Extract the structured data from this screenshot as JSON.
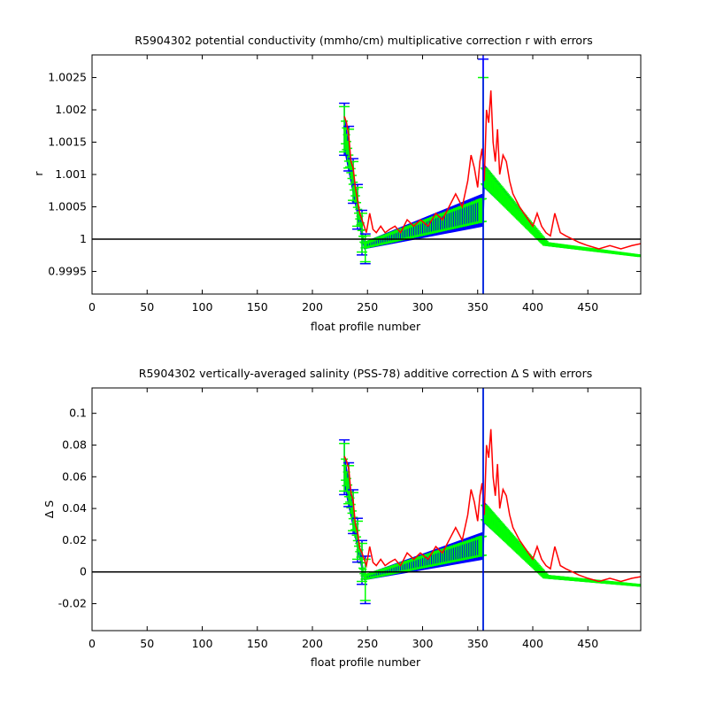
{
  "chart_data": [
    {
      "type": "line",
      "title": "R5904302 potential conductivity (mmho/cm) multiplicative correction r with errors",
      "xlabel": "float profile number",
      "ylabel": "r",
      "xlim": [
        0,
        498
      ],
      "ylim": [
        0.99915,
        1.00285
      ],
      "xticks": [
        0,
        50,
        100,
        150,
        200,
        250,
        300,
        350,
        400,
        450
      ],
      "yticks": [
        0.9995,
        1,
        1.0005,
        1.001,
        1.0015,
        1.002,
        1.0025
      ],
      "ytick_labels": [
        "0.9995",
        "1",
        "1.0005",
        "1.001",
        "1.0015",
        "1.002",
        "1.0025"
      ],
      "reference_line": 1,
      "vertical_line": 355,
      "colors": {
        "fit": "#0000ff",
        "error": "#00ff00",
        "raw": "#ff0000",
        "axes": "#000000"
      },
      "series": [
        {
          "name": "",
          "role": "fit-upper",
          "x": [
            229,
            247,
            355,
            356,
            412,
            498
          ],
          "y": [
            1.0019,
            0.99995,
            1.0007,
            1.00115,
            0.99995,
            0.99975
          ]
        },
        {
          "name": "",
          "role": "fit-lower",
          "x": [
            229,
            247,
            355,
            356,
            412,
            498
          ],
          "y": [
            1.0014,
            0.99985,
            1.0002,
            1.0008,
            0.9999,
            0.99973
          ]
        },
        {
          "name": "",
          "role": "error-bars",
          "x": [
            229,
            233,
            237,
            241,
            245,
            248,
            355
          ],
          "y": [
            1.0017,
            1.0014,
            1.0009,
            1.0005,
            1.0001,
            0.99985,
            1.0006
          ],
          "err": [
            0.00035,
            0.0003,
            0.0003,
            0.0003,
            0.0003,
            0.0002,
            0.0019
          ]
        },
        {
          "name": "",
          "role": "raw",
          "x": [
            229,
            231,
            233,
            235,
            237,
            239,
            241,
            243,
            245,
            247,
            249,
            252,
            255,
            258,
            262,
            266,
            270,
            275,
            280,
            286,
            292,
            298,
            305,
            312,
            318,
            324,
            330,
            336,
            341,
            344,
            347,
            350,
            352,
            354,
            356,
            358,
            360,
            362,
            364,
            366,
            368,
            370,
            373,
            376,
            379,
            382,
            385,
            388,
            392,
            396,
            400,
            404,
            408,
            412,
            416,
            420,
            425,
            430,
            436,
            442,
            450,
            460,
            470,
            480,
            490,
            498
          ],
          "y": [
            1.0019,
            1.0018,
            1.0016,
            1.0012,
            1.0011,
            1.0008,
            1.0006,
            1.0004,
            1.0003,
            1.0002,
            1.0001,
            1.0004,
            1.00015,
            1.0001,
            1.0002,
            1.0001,
            1.00015,
            1.0002,
            1.0001,
            1.0003,
            1.0002,
            1.0003,
            1.0002,
            1.0004,
            1.0003,
            1.0005,
            1.0007,
            1.0005,
            1.0009,
            1.0013,
            1.0011,
            1.0008,
            1.0012,
            1.0014,
            1.0009,
            1.002,
            1.0018,
            1.0023,
            1.0015,
            1.0012,
            1.0017,
            1.001,
            1.0013,
            1.0012,
            1.0009,
            1.0007,
            1.0006,
            1.0005,
            1.0004,
            1.0003,
            1.0002,
            1.0004,
            1.0002,
            1.0001,
            1.00005,
            1.0004,
            1.0001,
            1.00005,
            1.0,
            0.99995,
            0.9999,
            0.99985,
            0.9999,
            0.99985,
            0.9999,
            0.99993
          ]
        }
      ]
    },
    {
      "type": "line",
      "title": "R5904302 vertically-averaged salinity (PSS-78) additive correction Δ S with errors",
      "xlabel": "float profile number",
      "ylabel": "Δ S",
      "xlim": [
        0,
        498
      ],
      "ylim": [
        -0.037,
        0.116
      ],
      "xticks": [
        0,
        50,
        100,
        150,
        200,
        250,
        300,
        350,
        400,
        450
      ],
      "yticks": [
        -0.02,
        0,
        0.02,
        0.04,
        0.06,
        0.08,
        0.1
      ],
      "ytick_labels": [
        "-0.02",
        "0",
        "0.02",
        "0.04",
        "0.06",
        "0.08",
        "0.1"
      ],
      "reference_line": 0,
      "vertical_line": 355,
      "colors": {
        "fit": "#0000ff",
        "error": "#00ff00",
        "raw": "#ff0000",
        "axes": "#000000"
      },
      "series": [
        {
          "name": "",
          "role": "fit-upper",
          "x": [
            229,
            247,
            355,
            356,
            412,
            498
          ],
          "y": [
            0.074,
            -0.002,
            0.025,
            0.044,
            -0.002,
            -0.008
          ]
        },
        {
          "name": "",
          "role": "fit-lower",
          "x": [
            229,
            247,
            355,
            356,
            412,
            498
          ],
          "y": [
            0.055,
            -0.005,
            0.008,
            0.031,
            -0.004,
            -0.009
          ]
        },
        {
          "name": "",
          "role": "error-bars",
          "x": [
            229,
            233,
            237,
            241,
            245,
            248,
            355
          ],
          "y": [
            0.066,
            0.055,
            0.038,
            0.02,
            0.006,
            -0.005,
            0.028
          ],
          "err": [
            0.015,
            0.012,
            0.012,
            0.012,
            0.012,
            0.013,
            0.095
          ]
        },
        {
          "name": "",
          "role": "raw",
          "x": [
            229,
            231,
            233,
            235,
            237,
            239,
            241,
            243,
            245,
            247,
            249,
            252,
            255,
            258,
            262,
            266,
            270,
            275,
            280,
            286,
            292,
            298,
            305,
            312,
            318,
            324,
            330,
            336,
            341,
            344,
            347,
            350,
            352,
            354,
            356,
            358,
            360,
            362,
            364,
            366,
            368,
            370,
            373,
            376,
            379,
            382,
            385,
            388,
            392,
            396,
            400,
            404,
            408,
            412,
            416,
            420,
            425,
            430,
            436,
            442,
            450,
            460,
            470,
            480,
            490,
            498
          ],
          "y": [
            0.073,
            0.07,
            0.065,
            0.05,
            0.045,
            0.03,
            0.025,
            0.015,
            0.012,
            0.008,
            0.004,
            0.016,
            0.006,
            0.004,
            0.008,
            0.004,
            0.006,
            0.008,
            0.004,
            0.012,
            0.008,
            0.012,
            0.008,
            0.016,
            0.012,
            0.02,
            0.028,
            0.02,
            0.036,
            0.052,
            0.044,
            0.032,
            0.048,
            0.056,
            0.036,
            0.08,
            0.072,
            0.09,
            0.06,
            0.048,
            0.068,
            0.04,
            0.052,
            0.048,
            0.036,
            0.028,
            0.024,
            0.02,
            0.016,
            0.012,
            0.008,
            0.016,
            0.008,
            0.004,
            0.002,
            0.016,
            0.004,
            0.002,
            0.0,
            -0.002,
            -0.004,
            -0.006,
            -0.004,
            -0.006,
            -0.004,
            -0.003
          ]
        }
      ]
    }
  ]
}
